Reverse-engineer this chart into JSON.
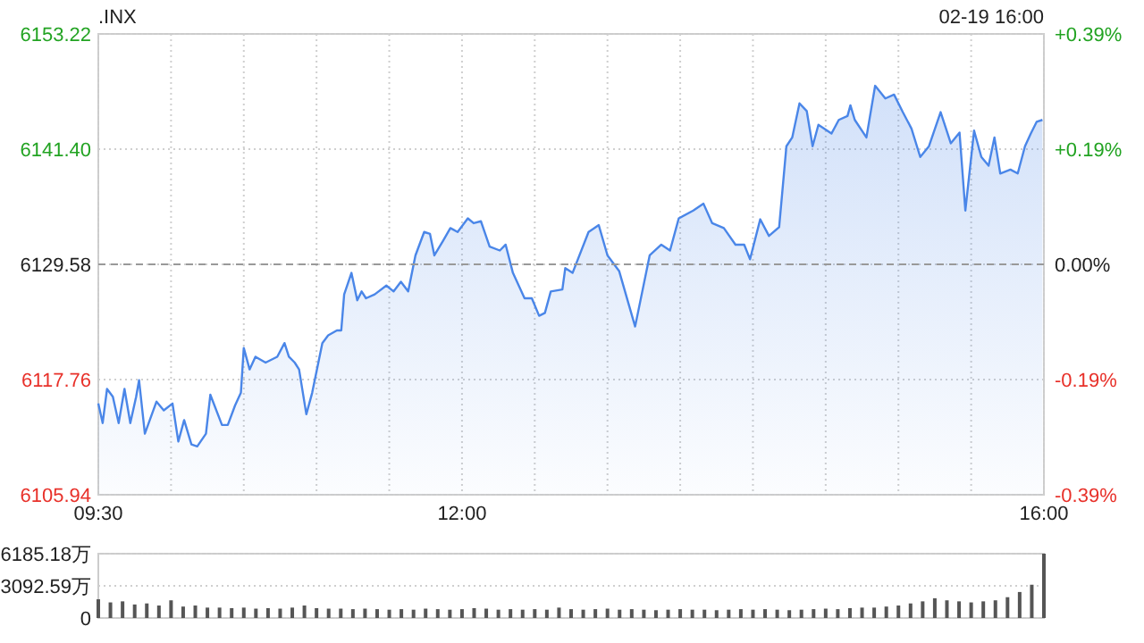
{
  "chart_data": [
    {
      "type": "area",
      "title": ".INX",
      "annotations": [
        "02-19 16:00"
      ],
      "xlim": [
        9.5,
        16
      ],
      "xticks": [
        {
          "value": 9.5,
          "label": "09:30"
        },
        {
          "value": 10,
          "label": null
        },
        {
          "value": 10.5,
          "label": null
        },
        {
          "value": 11,
          "label": null
        },
        {
          "value": 11.5,
          "label": null
        },
        {
          "value": 12,
          "label": "12:00"
        },
        {
          "value": 12.5,
          "label": null
        },
        {
          "value": 13,
          "label": null
        },
        {
          "value": 13.5,
          "label": null
        },
        {
          "value": 14,
          "label": null
        },
        {
          "value": 14.5,
          "label": null
        },
        {
          "value": 15,
          "label": null
        },
        {
          "value": 15.5,
          "label": null
        },
        {
          "value": 16,
          "label": "16:00"
        }
      ],
      "ylim": [
        6105.94,
        6153.22
      ],
      "yticks": [
        {
          "value": 6105.94,
          "label": "6105.94"
        },
        {
          "value": 6117.76,
          "label": "6117.76"
        },
        {
          "value": 6129.58,
          "label": "6129.58"
        },
        {
          "value": 6141.4,
          "label": "6141.40"
        },
        {
          "value": 6153.22,
          "label": "6153.22"
        }
      ],
      "y2lim": [
        -0.386,
        0.386
      ],
      "y2ticks": [
        {
          "value": -0.386,
          "label": "-0.39%"
        },
        {
          "value": -0.193,
          "label": "-0.19%"
        },
        {
          "value": 0,
          "label": "0.00%"
        },
        {
          "value": 0.193,
          "label": "+0.19%"
        },
        {
          "value": 0.386,
          "label": "+0.39%"
        }
      ],
      "ref_lines": [
        {
          "axis": "y",
          "value": 6129.58,
          "color": "#999999",
          "line_style": "dashed"
        }
      ],
      "grid": true,
      "series": [
        {
          "color": "#4a86e8",
          "x": [
            9.5,
            9.53,
            9.56,
            9.6,
            9.64,
            9.68,
            9.72,
            9.76,
            9.78,
            9.82,
            9.9,
            9.95,
            10.01,
            10.05,
            10.09,
            10.14,
            10.18,
            10.24,
            10.27,
            10.35,
            10.39,
            10.44,
            10.48,
            10.5,
            10.54,
            10.58,
            10.65,
            10.73,
            10.78,
            10.81,
            10.85,
            10.88,
            10.93,
            10.97,
            11.04,
            11.08,
            11.14,
            11.17,
            11.19,
            11.24,
            11.28,
            11.31,
            11.34,
            11.4,
            11.48,
            11.53,
            11.58,
            11.63,
            11.68,
            11.74,
            11.78,
            11.81,
            11.87,
            11.92,
            11.97,
            12.04,
            12.08,
            12.13,
            12.19,
            12.26,
            12.3,
            12.35,
            12.43,
            12.48,
            12.53,
            12.57,
            12.61,
            12.69,
            12.71,
            12.76,
            12.87,
            12.94,
            13.0,
            13.08,
            13.19,
            13.29,
            13.37,
            13.43,
            13.49,
            13.59,
            13.66,
            13.72,
            13.8,
            13.88,
            13.94,
            13.98,
            14.05,
            14.11,
            14.18,
            14.23,
            14.27,
            14.32,
            14.37,
            14.41,
            14.45,
            14.54,
            14.59,
            14.65,
            14.67,
            14.7,
            14.78,
            14.84,
            14.91,
            14.97,
            15.03,
            15.09,
            15.15,
            15.21,
            15.29,
            15.36,
            15.42,
            15.46,
            15.52,
            15.57,
            15.62,
            15.66,
            15.7,
            15.77,
            15.82,
            15.87,
            15.91,
            15.95,
            15.99
          ],
          "values": [
            6115.3,
            6113.3,
            6116.8,
            6116.0,
            6113.3,
            6116.8,
            6113.3,
            6116.0,
            6117.7,
            6112.2,
            6115.5,
            6114.6,
            6115.3,
            6111.4,
            6113.6,
            6111.1,
            6110.9,
            6112.2,
            6116.2,
            6113.1,
            6113.1,
            6115.1,
            6116.4,
            6121.0,
            6118.8,
            6120.1,
            6119.5,
            6120.1,
            6121.5,
            6120.1,
            6119.5,
            6118.8,
            6114.2,
            6116.4,
            6121.5,
            6122.3,
            6122.8,
            6122.8,
            6126.5,
            6128.7,
            6125.9,
            6126.8,
            6126.1,
            6126.5,
            6127.4,
            6126.8,
            6127.8,
            6126.8,
            6130.5,
            6132.9,
            6132.7,
            6130.5,
            6132.0,
            6133.3,
            6132.9,
            6134.3,
            6133.8,
            6134.0,
            6131.4,
            6131.0,
            6131.6,
            6128.7,
            6126.1,
            6126.1,
            6124.3,
            6124.6,
            6126.8,
            6127.0,
            6129.2,
            6128.7,
            6132.9,
            6133.6,
            6130.5,
            6128.9,
            6123.2,
            6130.5,
            6131.6,
            6131.0,
            6134.3,
            6135.1,
            6135.8,
            6133.8,
            6133.3,
            6131.6,
            6131.6,
            6130.1,
            6134.2,
            6132.5,
            6133.4,
            6141.7,
            6142.6,
            6146.1,
            6145.3,
            6141.7,
            6143.9,
            6143.0,
            6144.4,
            6144.8,
            6145.9,
            6144.4,
            6142.6,
            6147.9,
            6146.6,
            6147.0,
            6145.2,
            6143.5,
            6140.6,
            6141.7,
            6145.2,
            6142.0,
            6143.1,
            6135.1,
            6143.3,
            6140.6,
            6139.7,
            6142.6,
            6138.9,
            6139.3,
            6138.9,
            6141.7,
            6143.0,
            6144.2,
            6144.4
          ]
        }
      ]
    },
    {
      "type": "bar",
      "xlim": [
        9.5,
        16
      ],
      "ylim": [
        0,
        6185.18
      ],
      "yticks": [
        0,
        {
          "value": 3092.59,
          "label": "3092.59万"
        },
        {
          "value": 6185.18,
          "label": "6185.18万"
        }
      ],
      "tick_labels": "y",
      "grid": "y",
      "series": [
        {
          "color": "#555555",
          "x": [
            9.5,
            9.5833,
            9.6667,
            9.75,
            9.8333,
            9.9167,
            10,
            10.0833,
            10.1667,
            10.25,
            10.3333,
            10.4167,
            10.5,
            10.5833,
            10.6667,
            10.75,
            10.8333,
            10.9167,
            11,
            11.0833,
            11.1667,
            11.25,
            11.3333,
            11.4167,
            11.5,
            11.5833,
            11.6667,
            11.75,
            11.8333,
            11.9167,
            12,
            12.0833,
            12.1667,
            12.25,
            12.3333,
            12.4167,
            12.5,
            12.5833,
            12.6667,
            12.75,
            12.8333,
            12.9167,
            13,
            13.0833,
            13.1667,
            13.25,
            13.3333,
            13.4167,
            13.5,
            13.5833,
            13.6667,
            13.75,
            13.8333,
            13.9167,
            14,
            14.0833,
            14.1667,
            14.25,
            14.3333,
            14.4167,
            14.5,
            14.5833,
            14.6667,
            14.75,
            14.8333,
            14.9167,
            15,
            15.0833,
            15.1667,
            15.25,
            15.3333,
            15.4167,
            15.5,
            15.5833,
            15.6667,
            15.75,
            15.8333,
            15.9167,
            16
          ],
          "values": [
            1800,
            1500,
            1600,
            1300,
            1400,
            1200,
            1700,
            1100,
            1200,
            1000,
            1000,
            950,
            1000,
            900,
            950,
            900,
            1000,
            1200,
            950,
            900,
            900,
            850,
            900,
            850,
            800,
            850,
            800,
            900,
            850,
            800,
            850,
            950,
            900,
            800,
            850,
            800,
            850,
            800,
            1000,
            850,
            800,
            850,
            900,
            800,
            850,
            800,
            750,
            800,
            850,
            800,
            800,
            750,
            800,
            850,
            800,
            850,
            800,
            750,
            800,
            850,
            900,
            850,
            950,
            1000,
            1000,
            1100,
            1200,
            1400,
            1600,
            1900,
            1700,
            1600,
            1500,
            1600,
            1700,
            2000,
            2500,
            3200,
            6185.18
          ]
        }
      ]
    }
  ]
}
